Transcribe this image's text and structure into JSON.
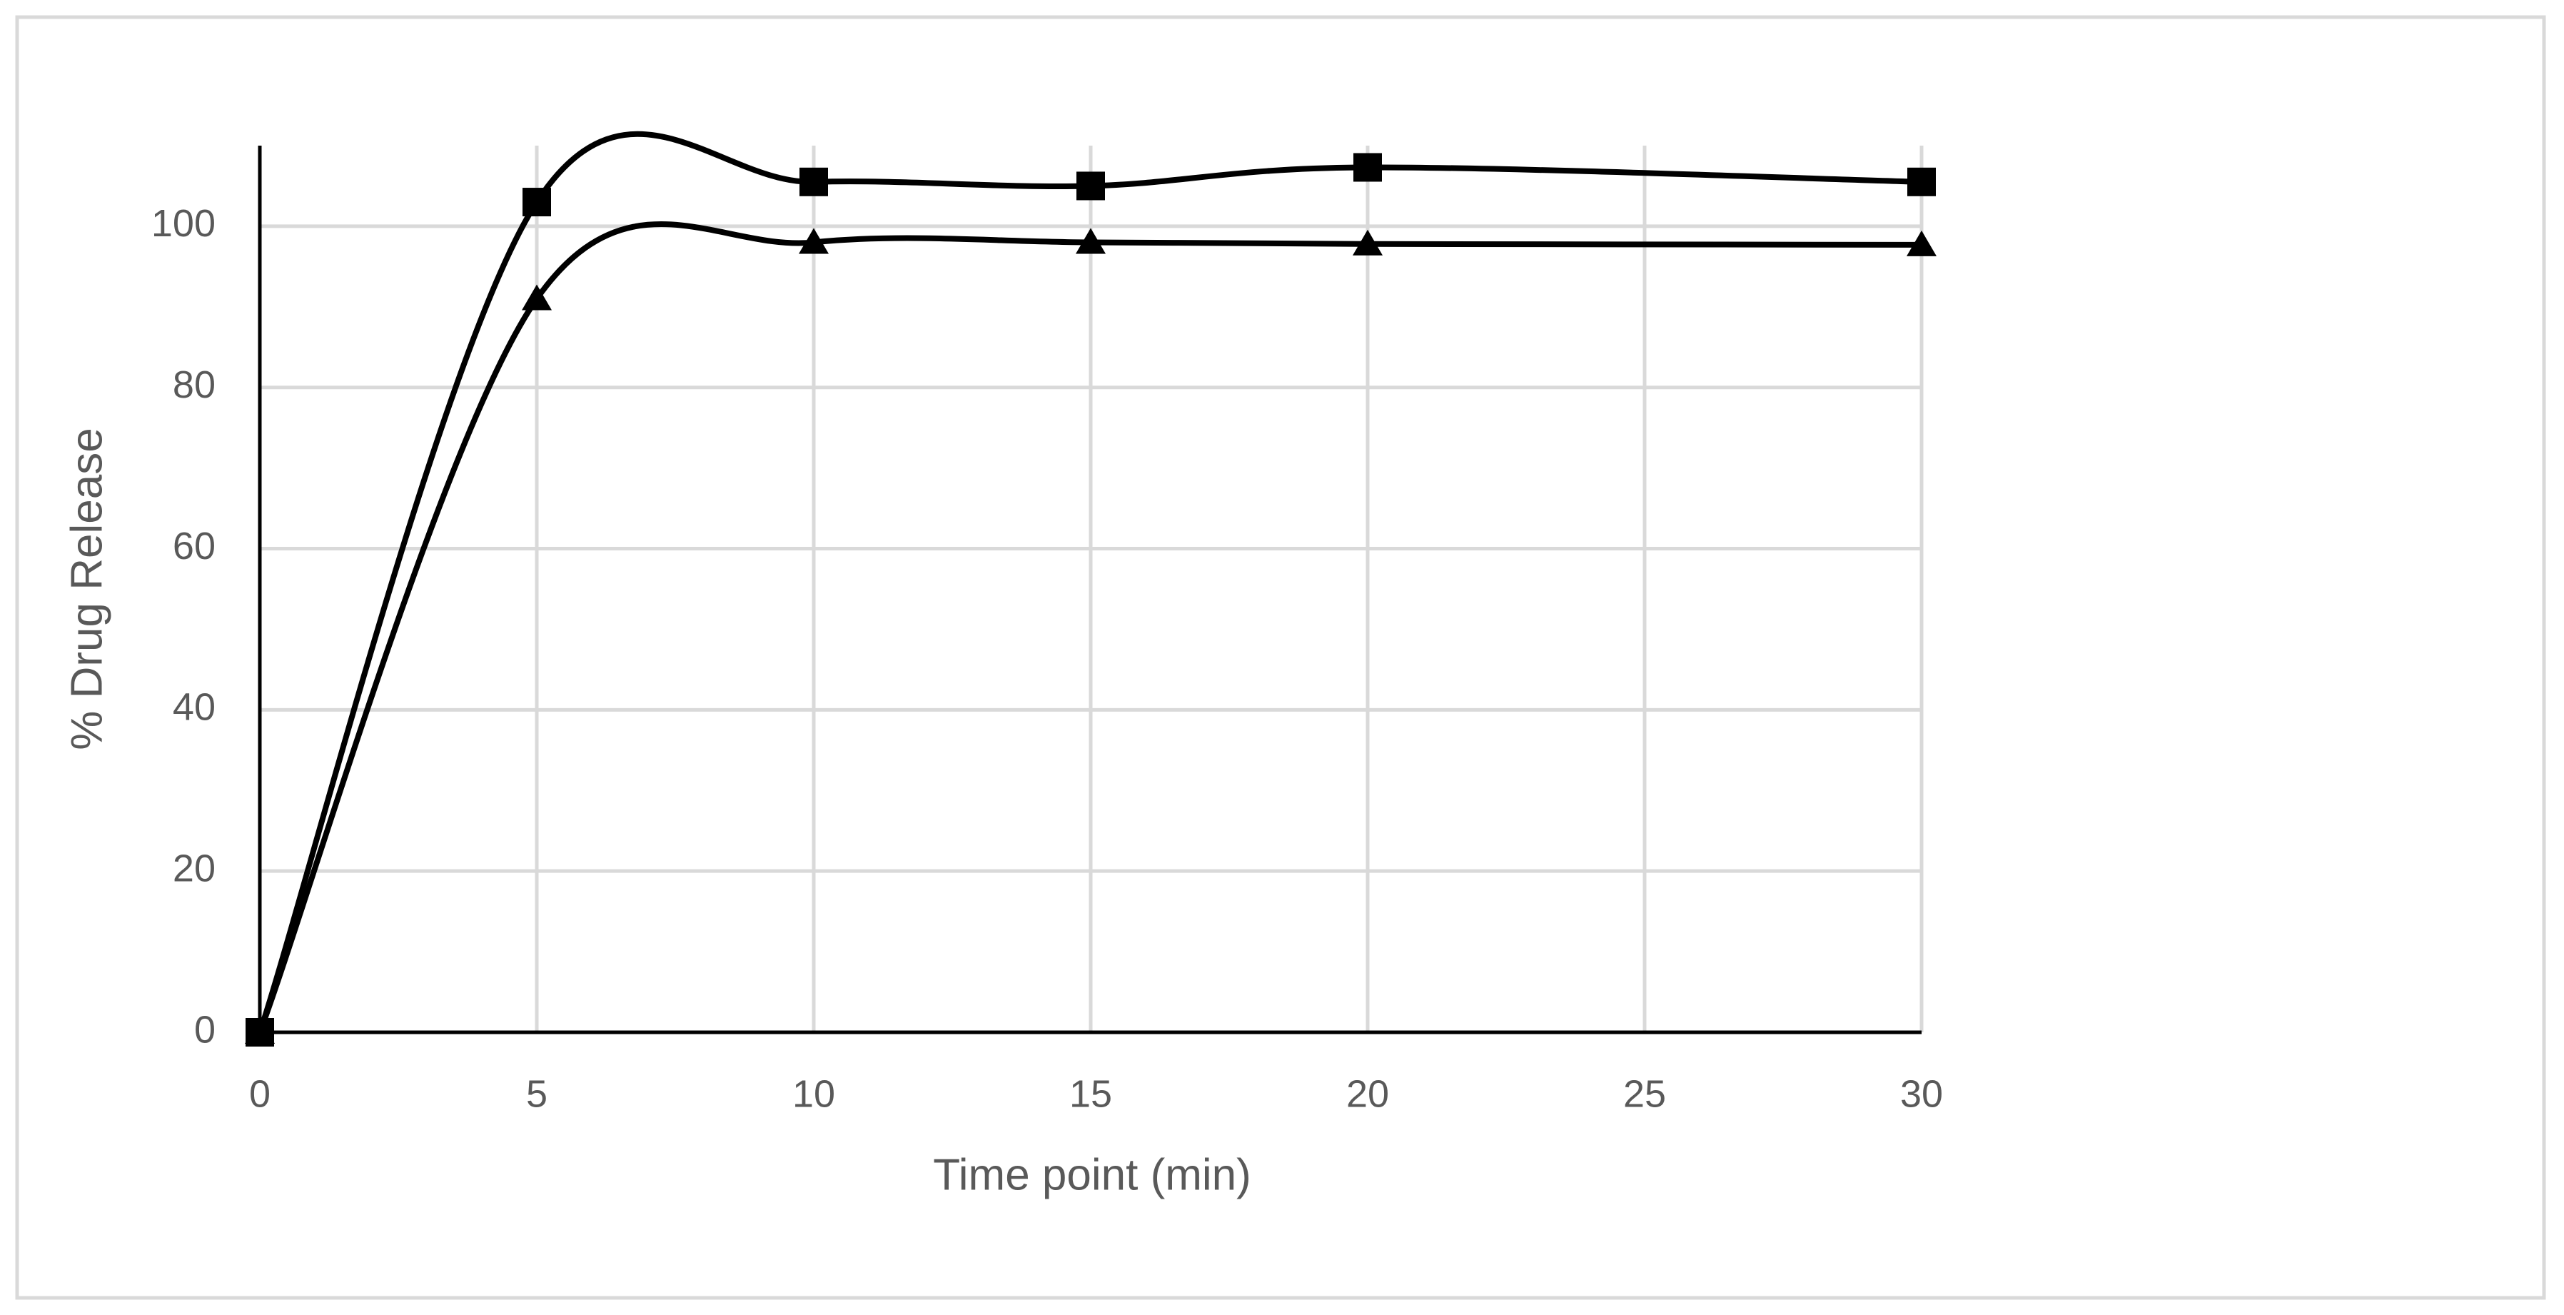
{
  "chart_data": {
    "type": "line",
    "x_label": "Time point (min)",
    "y_label": "% Drug Release",
    "x": [
      0,
      5,
      10,
      15,
      20,
      30
    ],
    "series": [
      {
        "color": "#000000",
        "marker": "square",
        "values": [
          0,
          103,
          105.5,
          105,
          107.3,
          105.5
        ]
      },
      {
        "color": "#000000",
        "marker": "triangle",
        "values": [
          0,
          91,
          98,
          98,
          97.8,
          97.7
        ]
      }
    ],
    "xlim": [
      0,
      30
    ],
    "xticks": [
      0,
      5,
      10,
      15,
      20,
      25,
      30
    ],
    "ylim": [
      0,
      110
    ],
    "yticks": [
      0,
      20,
      40,
      60,
      80,
      100
    ],
    "grid": true,
    "smooth": true
  }
}
